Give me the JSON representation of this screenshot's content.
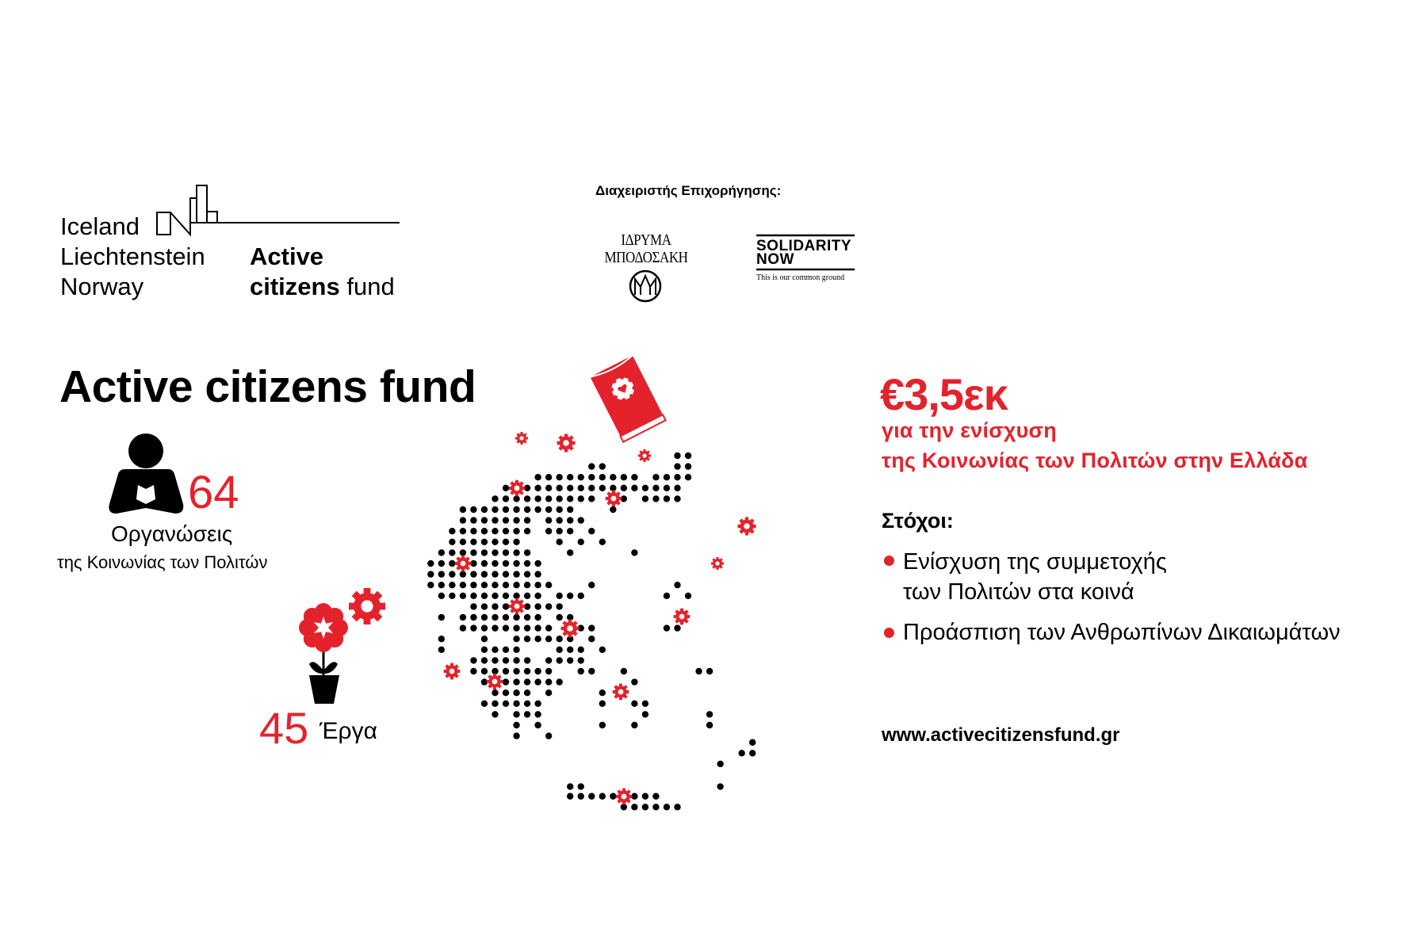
{
  "logo_eea": {
    "lines": [
      "Iceland",
      "Liechtenstein",
      "Norway"
    ]
  },
  "logo_acf": {
    "line1": "Active",
    "line2_bold": "citizens",
    "line2_regular": "fund"
  },
  "grant_managers": {
    "label": "Διαχειριστής Επιχορήγησης:",
    "bodossakis": [
      "ΙΔΡΥΜΑ",
      "ΜΠΟΔΟΣΑΚΗ"
    ],
    "solidarity_now": {
      "line1": "SOLIDARITY",
      "line2": "NOW",
      "tagline": "This is our common ground"
    }
  },
  "main": {
    "title": "Active citizens fund",
    "organizations": {
      "count": "64",
      "label": "Οργανώσεις",
      "sublabel": "της Κοινωνίας των Πολιτών",
      "icon": "person-reading-icon"
    },
    "projects": {
      "count": "45",
      "label": "Έργα",
      "icon": "flower-pot-icon"
    }
  },
  "funding": {
    "amount": "€3,5εκ",
    "line1": "για την ενίσχυση",
    "line2": "της Κοινωνίας των Πολιτών στην Ελλάδα"
  },
  "goals": {
    "heading": "Στόχοι:",
    "items": [
      {
        "line1": "Ενίσχυση της συμμετοχής",
        "line2": "των Πολιτών στα κοινά"
      },
      {
        "line1": "Προάσπιση των Ανθρωπίνων Δικαιωμάτων",
        "line2": ""
      }
    ]
  },
  "website": "www.activecitizensfund.gr",
  "colors": {
    "accent": "#e4222c",
    "text": "#000000",
    "background": "#ffffff"
  }
}
